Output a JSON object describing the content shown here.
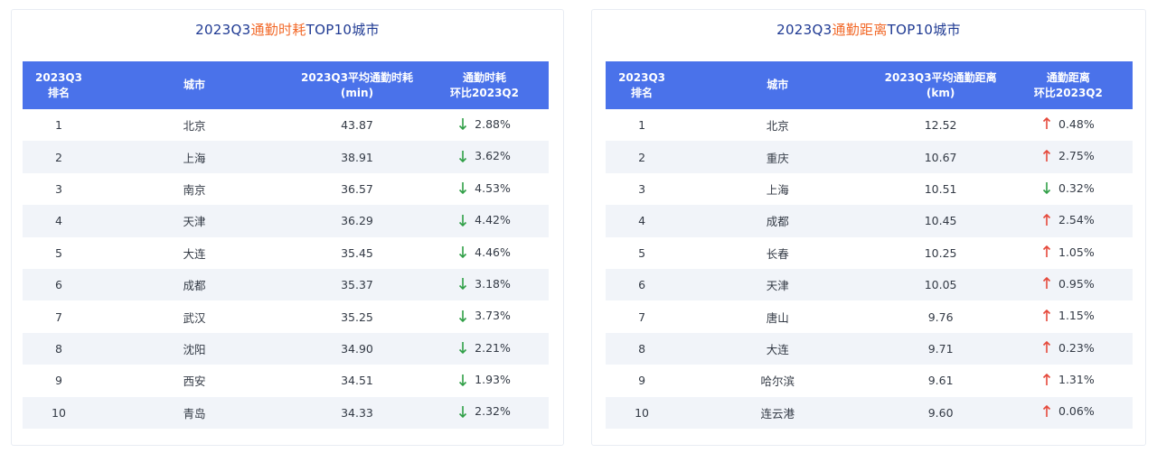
{
  "colors": {
    "accent_title": "#f26a2a",
    "title": "#1f3a93",
    "header_bg": "#4a72ea",
    "down": "#2e9e45",
    "up": "#e5483a"
  },
  "left": {
    "title_pre": "2023Q3",
    "title_hl": "通勤时耗",
    "title_post": "TOP10城市",
    "headers": {
      "rank_1": "2023Q3",
      "rank_2": "排名",
      "city": "城市",
      "val_1": "2023Q3平均通勤时耗",
      "val_2": "(min)",
      "chg_1": "通勤时耗",
      "chg_2": "环比2023Q2"
    },
    "rows": [
      {
        "rank": "1",
        "city": "北京",
        "value": "43.87",
        "dir": "down",
        "change": "2.88%"
      },
      {
        "rank": "2",
        "city": "上海",
        "value": "38.91",
        "dir": "down",
        "change": "3.62%"
      },
      {
        "rank": "3",
        "city": "南京",
        "value": "36.57",
        "dir": "down",
        "change": "4.53%"
      },
      {
        "rank": "4",
        "city": "天津",
        "value": "36.29",
        "dir": "down",
        "change": "4.42%"
      },
      {
        "rank": "5",
        "city": "大连",
        "value": "35.45",
        "dir": "down",
        "change": "4.46%"
      },
      {
        "rank": "6",
        "city": "成都",
        "value": "35.37",
        "dir": "down",
        "change": "3.18%"
      },
      {
        "rank": "7",
        "city": "武汉",
        "value": "35.25",
        "dir": "down",
        "change": "3.73%"
      },
      {
        "rank": "8",
        "city": "沈阳",
        "value": "34.90",
        "dir": "down",
        "change": "2.21%"
      },
      {
        "rank": "9",
        "city": "西安",
        "value": "34.51",
        "dir": "down",
        "change": "1.93%"
      },
      {
        "rank": "10",
        "city": "青岛",
        "value": "34.33",
        "dir": "down",
        "change": "2.32%"
      }
    ]
  },
  "right": {
    "title_pre": "2023Q3",
    "title_hl": "通勤距离",
    "title_post": "TOP10城市",
    "headers": {
      "rank_1": "2023Q3",
      "rank_2": "排名",
      "city": "城市",
      "val_1": "2023Q3平均通勤距离",
      "val_2": "(km)",
      "chg_1": "通勤距离",
      "chg_2": "环比2023Q2"
    },
    "rows": [
      {
        "rank": "1",
        "city": "北京",
        "value": "12.52",
        "dir": "up",
        "change": "0.48%"
      },
      {
        "rank": "2",
        "city": "重庆",
        "value": "10.67",
        "dir": "up",
        "change": "2.75%"
      },
      {
        "rank": "3",
        "city": "上海",
        "value": "10.51",
        "dir": "down",
        "change": "0.32%"
      },
      {
        "rank": "4",
        "city": "成都",
        "value": "10.45",
        "dir": "up",
        "change": "2.54%"
      },
      {
        "rank": "5",
        "city": "长春",
        "value": "10.25",
        "dir": "up",
        "change": "1.05%"
      },
      {
        "rank": "6",
        "city": "天津",
        "value": "10.05",
        "dir": "up",
        "change": "0.95%"
      },
      {
        "rank": "7",
        "city": "唐山",
        "value": "9.76",
        "dir": "up",
        "change": "1.15%"
      },
      {
        "rank": "8",
        "city": "大连",
        "value": "9.71",
        "dir": "up",
        "change": "0.23%"
      },
      {
        "rank": "9",
        "city": "哈尔滨",
        "value": "9.61",
        "dir": "up",
        "change": "1.31%"
      },
      {
        "rank": "10",
        "city": "连云港",
        "value": "9.60",
        "dir": "up",
        "change": "0.06%"
      }
    ]
  }
}
